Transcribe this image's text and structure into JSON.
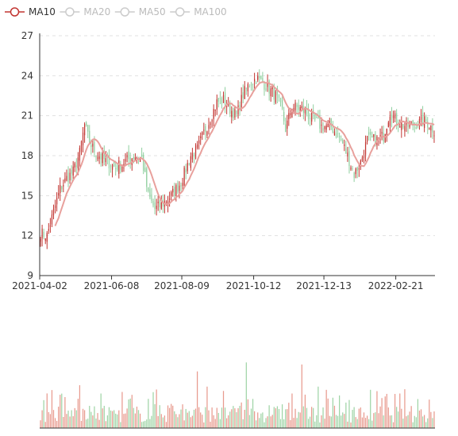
{
  "legend": {
    "items": [
      {
        "name": "MA10",
        "active": true
      },
      {
        "name": "MA20",
        "active": false
      },
      {
        "name": "MA50",
        "active": false
      },
      {
        "name": "MA100",
        "active": false
      }
    ],
    "active_color": "#c23531",
    "inactive_color": "#cccccc"
  },
  "colors": {
    "up": "#c23531",
    "down": "#8fcf9f",
    "ma10": "#e8a09c",
    "grid": "#e0e0e0",
    "axis": "#333333"
  },
  "chart_data": {
    "type": "candlestick",
    "price_axis": {
      "ylim": [
        9,
        27
      ],
      "ticks": [
        9,
        12,
        15,
        18,
        21,
        24,
        27
      ]
    },
    "x_tick_labels": [
      "2021-04-02",
      "2021-06-08",
      "2021-08-09",
      "2021-10-12",
      "2021-12-13",
      "2022-02-21"
    ],
    "x_tick_index": [
      0,
      44,
      87,
      131,
      174,
      218
    ],
    "n_days": 242,
    "close_anchors": [
      [
        0,
        12.2
      ],
      [
        4,
        12.0
      ],
      [
        8,
        13.8
      ],
      [
        12,
        15.5
      ],
      [
        16,
        16.3
      ],
      [
        20,
        16.8
      ],
      [
        24,
        18.2
      ],
      [
        27,
        20.3
      ],
      [
        30,
        19.0
      ],
      [
        34,
        18.2
      ],
      [
        40,
        17.6
      ],
      [
        46,
        17.1
      ],
      [
        52,
        17.6
      ],
      [
        58,
        18.0
      ],
      [
        62,
        17.8
      ],
      [
        66,
        15.0
      ],
      [
        70,
        14.0
      ],
      [
        74,
        14.3
      ],
      [
        80,
        15.0
      ],
      [
        86,
        16.0
      ],
      [
        92,
        18.0
      ],
      [
        96,
        18.5
      ],
      [
        100,
        19.7
      ],
      [
        104,
        20.8
      ],
      [
        108,
        22.0
      ],
      [
        112,
        22.2
      ],
      [
        116,
        21.5
      ],
      [
        120,
        21.0
      ],
      [
        124,
        22.6
      ],
      [
        128,
        23.4
      ],
      [
        132,
        23.8
      ],
      [
        136,
        23.5
      ],
      [
        140,
        23.0
      ],
      [
        144,
        22.5
      ],
      [
        148,
        21.3
      ],
      [
        150,
        20.0
      ],
      [
        154,
        21.7
      ],
      [
        160,
        21.5
      ],
      [
        166,
        20.8
      ],
      [
        172,
        20.2
      ],
      [
        178,
        20.2
      ],
      [
        184,
        19.2
      ],
      [
        188,
        18.0
      ],
      [
        192,
        16.6
      ],
      [
        196,
        17.5
      ],
      [
        200,
        19.2
      ],
      [
        206,
        19.2
      ],
      [
        210,
        19.5
      ],
      [
        214,
        21.3
      ],
      [
        218,
        20.6
      ],
      [
        224,
        20.2
      ],
      [
        230,
        20.4
      ],
      [
        236,
        20.6
      ],
      [
        241,
        19.9
      ]
    ],
    "volume_spikes": [
      [
        7,
        0.55
      ],
      [
        24,
        0.62
      ],
      [
        37,
        0.5
      ],
      [
        96,
        0.82
      ],
      [
        102,
        0.6
      ],
      [
        126,
        0.95
      ],
      [
        160,
        0.92
      ],
      [
        170,
        0.6
      ],
      [
        220,
        0.5
      ],
      [
        231,
        0.42
      ]
    ]
  }
}
